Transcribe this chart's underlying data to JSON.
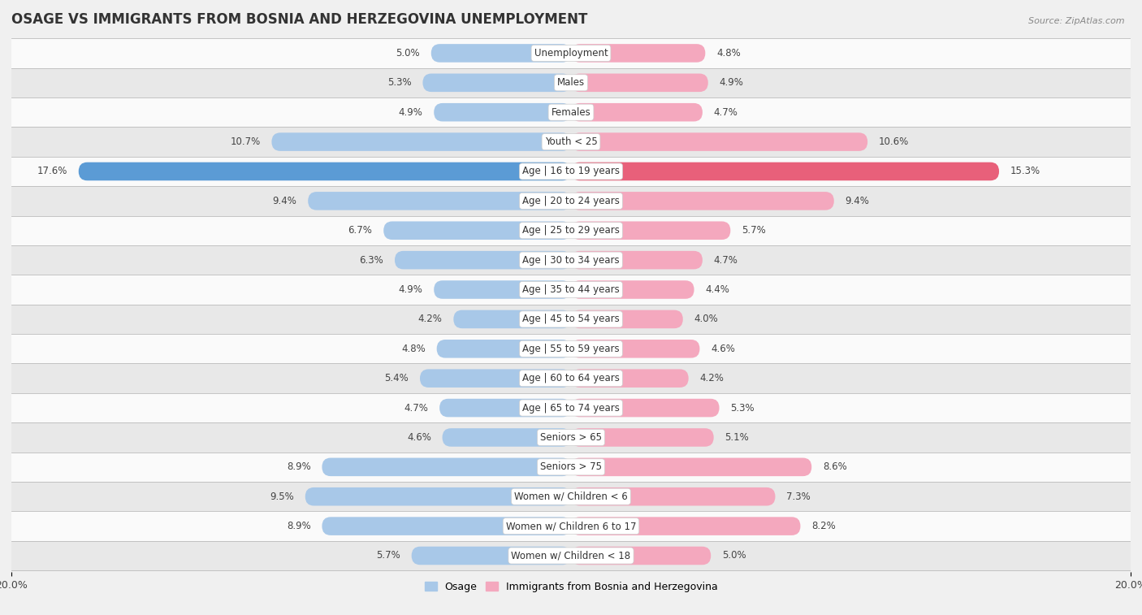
{
  "title": "OSAGE VS IMMIGRANTS FROM BOSNIA AND HERZEGOVINA UNEMPLOYMENT",
  "source": "Source: ZipAtlas.com",
  "categories": [
    "Unemployment",
    "Males",
    "Females",
    "Youth < 25",
    "Age | 16 to 19 years",
    "Age | 20 to 24 years",
    "Age | 25 to 29 years",
    "Age | 30 to 34 years",
    "Age | 35 to 44 years",
    "Age | 45 to 54 years",
    "Age | 55 to 59 years",
    "Age | 60 to 64 years",
    "Age | 65 to 74 years",
    "Seniors > 65",
    "Seniors > 75",
    "Women w/ Children < 6",
    "Women w/ Children 6 to 17",
    "Women w/ Children < 18"
  ],
  "osage_values": [
    5.0,
    5.3,
    4.9,
    10.7,
    17.6,
    9.4,
    6.7,
    6.3,
    4.9,
    4.2,
    4.8,
    5.4,
    4.7,
    4.6,
    8.9,
    9.5,
    8.9,
    5.7
  ],
  "bosnia_values": [
    4.8,
    4.9,
    4.7,
    10.6,
    15.3,
    9.4,
    5.7,
    4.7,
    4.4,
    4.0,
    4.6,
    4.2,
    5.3,
    5.1,
    8.6,
    7.3,
    8.2,
    5.0
  ],
  "osage_color": "#a8c8e8",
  "bosnia_color": "#f4a8be",
  "osage_highlight_color": "#5b9bd5",
  "bosnia_highlight_color": "#e8607a",
  "background_color": "#f0f0f0",
  "row_color_odd": "#fafafa",
  "row_color_even": "#e8e8e8",
  "xlim": 20.0,
  "bar_height": 0.62,
  "legend_osage": "Osage",
  "legend_bosnia": "Immigrants from Bosnia and Herzegovina",
  "title_fontsize": 12,
  "value_fontsize": 8.5,
  "category_fontsize": 8.5
}
